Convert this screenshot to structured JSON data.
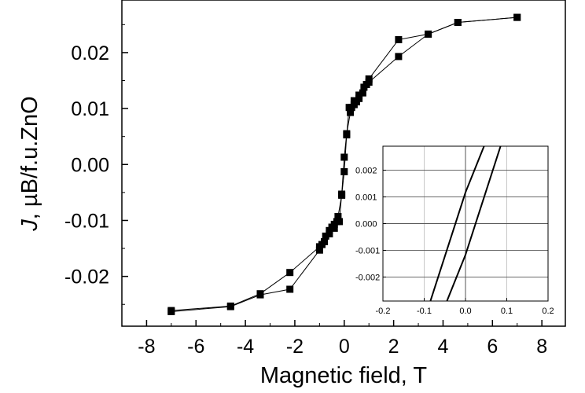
{
  "chart_data": [
    {
      "type": "line",
      "title": "",
      "xlabel": "Magnetic field, T",
      "ylabel_italic": "J",
      "ylabel_rest": ", µB/f.u.ZnO",
      "xlim": [
        -9,
        8.95
      ],
      "ylim": [
        -0.0289,
        0.0294
      ],
      "xticks": [
        -8,
        -6,
        -4,
        -2,
        0,
        2,
        4,
        6,
        8
      ],
      "xtick_labels": [
        "-8",
        "-6",
        "-4",
        "-2",
        "0",
        "2",
        "4",
        "6",
        "8"
      ],
      "yticks": [
        -0.02,
        -0.01,
        0.0,
        0.01,
        0.02
      ],
      "ytick_labels": [
        "-0.02",
        "-0.01",
        "0.00",
        "0.01",
        "0.02"
      ],
      "grid": false,
      "marker": "square",
      "series": [
        {
          "x": [
            -7.0,
            -4.6,
            -3.4,
            -2.2,
            -1.0,
            -0.8,
            -0.6,
            -0.4,
            -0.2,
            -0.1,
            0.0,
            0.1,
            0.25,
            0.3,
            0.4,
            0.5,
            0.6,
            0.75,
            0.9,
            1.0,
            2.2,
            3.4,
            4.6,
            7.0
          ],
          "y": [
            -0.0261,
            -0.0253,
            -0.0231,
            -0.0193,
            -0.0147,
            -0.0138,
            -0.0124,
            -0.0114,
            -0.0102,
            -0.0053,
            0.0013,
            0.0055,
            0.0093,
            0.0102,
            0.0107,
            0.0112,
            0.0118,
            0.0128,
            0.0143,
            0.0153,
            0.0223,
            0.0233,
            0.0254,
            0.0263
          ]
        },
        {
          "x": [
            7.0,
            4.6,
            3.4,
            2.2,
            1.0,
            0.8,
            0.6,
            0.4,
            0.2,
            0.1,
            0.0,
            -0.1,
            -0.25,
            -0.3,
            -0.4,
            -0.5,
            -0.6,
            -0.75,
            -0.9,
            -1.0,
            -2.2,
            -3.4,
            -4.6,
            -7.0
          ],
          "y": [
            0.0263,
            0.0254,
            0.0233,
            0.0193,
            0.0147,
            0.0138,
            0.0124,
            0.0114,
            0.0102,
            0.0053,
            -0.0013,
            -0.0055,
            -0.0093,
            -0.0102,
            -0.0107,
            -0.0112,
            -0.0118,
            -0.0128,
            -0.0143,
            -0.0153,
            -0.0223,
            -0.0233,
            -0.0254,
            -0.0263
          ]
        }
      ]
    },
    {
      "type": "line",
      "title": "",
      "xlim": [
        -0.2,
        0.2
      ],
      "ylim": [
        -0.0029,
        0.0029
      ],
      "xticks": [
        -0.2,
        -0.1,
        0.0,
        0.1,
        0.2
      ],
      "xtick_labels": [
        "-0.2",
        "-0.1",
        "0.0",
        "0.1",
        "0.2"
      ],
      "yticks": [
        -0.002,
        -0.001,
        0.0,
        0.001,
        0.002
      ],
      "ytick_labels": [
        "-0.002",
        "-0.001",
        "0.000",
        "0.001",
        "0.002"
      ],
      "grid": true,
      "marker": "none",
      "series": [
        {
          "x": [
            -0.085,
            0.0,
            0.045
          ],
          "y": [
            -0.0029,
            0.00117,
            0.0029
          ]
        },
        {
          "x": [
            -0.045,
            0.0,
            0.085
          ],
          "y": [
            -0.0029,
            -0.00117,
            0.0029
          ]
        }
      ]
    }
  ]
}
